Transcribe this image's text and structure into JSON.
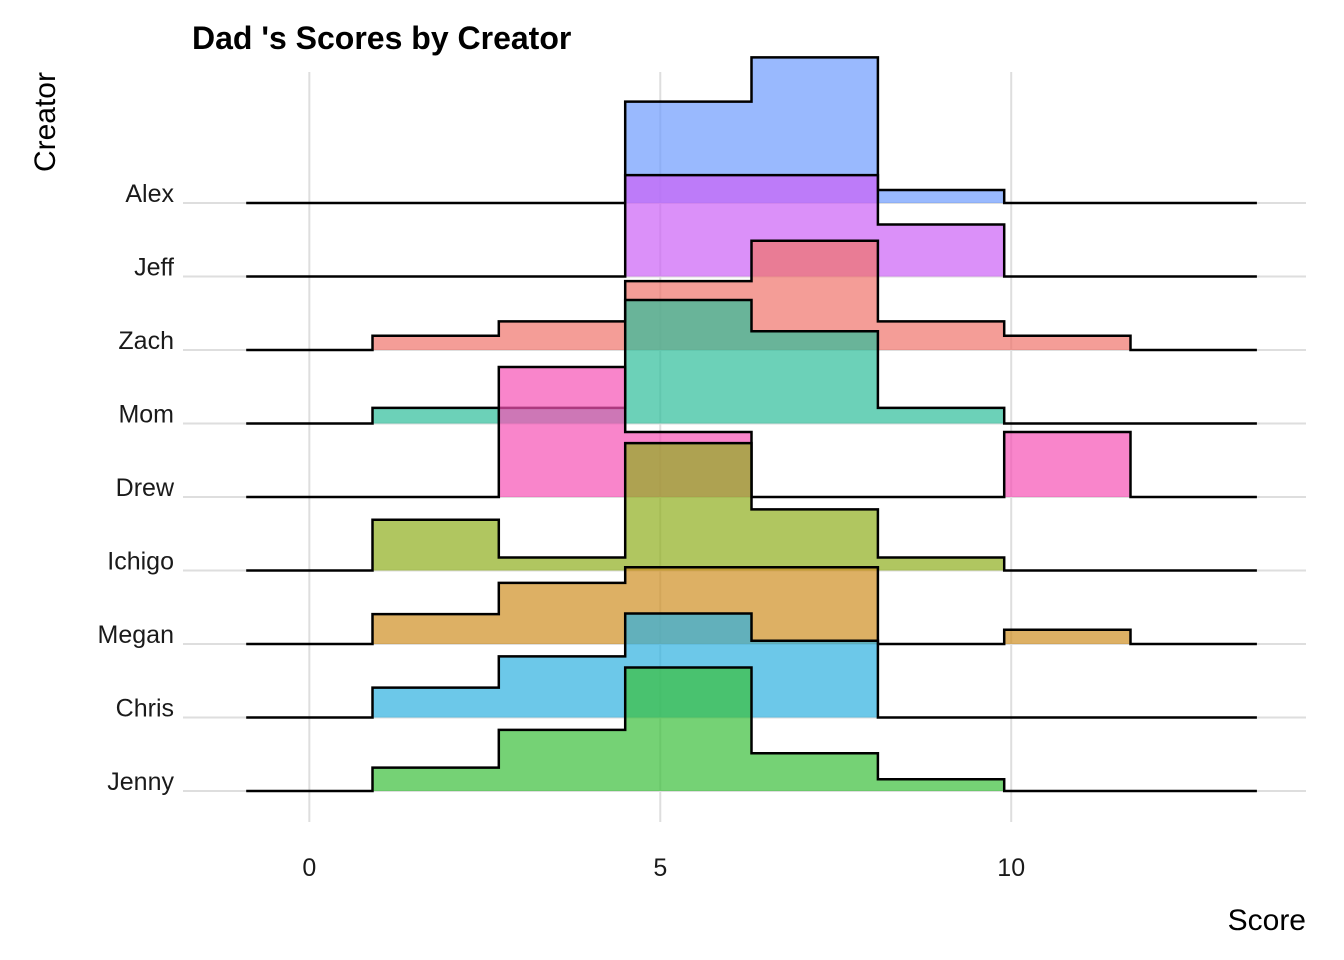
{
  "chart_data": {
    "type": "ridgeline-histogram",
    "title": "Dad 's Scores by Creator",
    "xlabel": "Score",
    "ylabel": "Creator",
    "x_ticks": [
      0,
      5,
      10
    ],
    "xlim": [
      -1.8,
      14.2
    ],
    "bin_edges": [
      -0.9,
      0.9,
      2.7,
      4.5,
      6.3,
      8.1,
      9.9,
      11.7,
      13.5
    ],
    "grid": true,
    "legend": "none",
    "series": [
      {
        "name": "Jenny",
        "color": "#3ABF3A",
        "values": [
          0,
          0.18,
          0.47,
          0.95,
          0.29,
          0.09,
          0,
          0
        ]
      },
      {
        "name": "Chris",
        "color": "#2DB1E0",
        "values": [
          0,
          0.23,
          0.47,
          0.8,
          0.59,
          0,
          0,
          0
        ]
      },
      {
        "name": "Megan",
        "color": "#CF8F22",
        "values": [
          0,
          0.23,
          0.47,
          0.59,
          0.59,
          0,
          0.11,
          0
        ]
      },
      {
        "name": "Ichigo",
        "color": "#8EAE1C",
        "values": [
          0,
          0.39,
          0.1,
          0.98,
          0.47,
          0.1,
          0,
          0
        ]
      },
      {
        "name": "Drew",
        "color": "#F751B5",
        "values": [
          0,
          0,
          1.0,
          0.5,
          0,
          0,
          0.5,
          0
        ]
      },
      {
        "name": "Mom",
        "color": "#2EBD9A",
        "values": [
          0,
          0.12,
          0.12,
          0.95,
          0.71,
          0.12,
          0,
          0
        ]
      },
      {
        "name": "Zach",
        "color": "#F0736B",
        "values": [
          0,
          0.11,
          0.22,
          0.53,
          0.84,
          0.22,
          0.11,
          0
        ]
      },
      {
        "name": "Jeff",
        "color": "#CC61F6",
        "values": [
          0,
          0,
          0,
          0.78,
          0.78,
          0.4,
          0,
          0
        ]
      },
      {
        "name": "Alex",
        "color": "#6E9BFD",
        "values": [
          0,
          0,
          0,
          0.78,
          1.12,
          0.1,
          0,
          0
        ]
      }
    ]
  }
}
